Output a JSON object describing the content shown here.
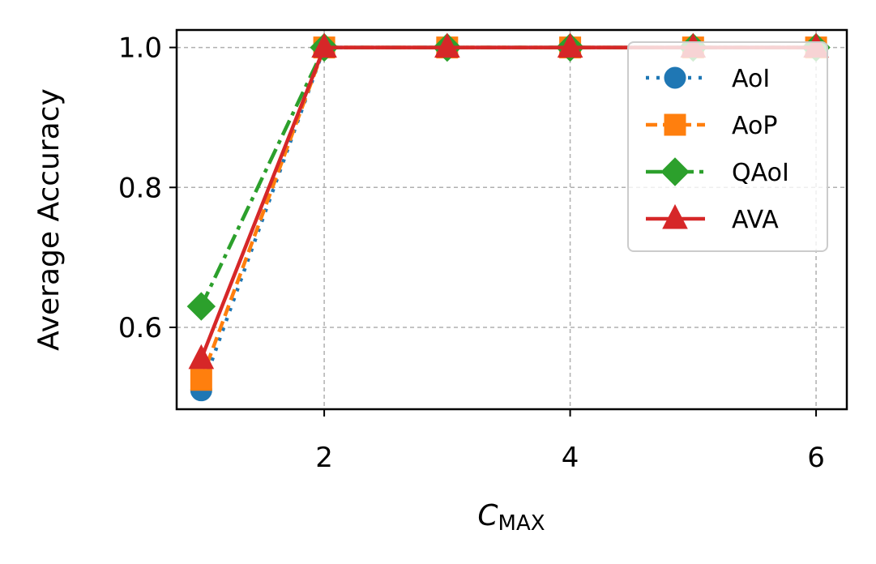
{
  "chart_data": {
    "type": "line",
    "xlabel_main": "C",
    "xlabel_sub": "MAX",
    "ylabel": "Average Accuracy",
    "xlim": [
      0.8,
      6.25
    ],
    "ylim": [
      0.483,
      1.025
    ],
    "xticks": [
      2,
      4,
      6
    ],
    "xtick_labels": [
      "2",
      "4",
      "6"
    ],
    "yticks": [
      0.6,
      0.8,
      1.0
    ],
    "ytick_labels": [
      "0.6",
      "0.8",
      "1.0"
    ],
    "grid": true,
    "legend_position": "top-right",
    "x": [
      1,
      2,
      3,
      4,
      5,
      6
    ],
    "series": [
      {
        "name": "AoI",
        "values": [
          0.51,
          1.0,
          1.0,
          1.0,
          1.0,
          1.0
        ],
        "color": "#1f77b4",
        "linestyle": "dotted",
        "marker": "circle"
      },
      {
        "name": "AoP",
        "values": [
          0.525,
          1.0,
          1.0,
          1.0,
          1.0,
          1.0
        ],
        "color": "#ff7f0e",
        "linestyle": "dashed",
        "marker": "square"
      },
      {
        "name": "QAoI",
        "values": [
          0.63,
          1.0,
          1.0,
          1.0,
          1.0,
          1.0
        ],
        "color": "#2ca02c",
        "linestyle": "dashdot",
        "marker": "diamond"
      },
      {
        "name": "AVA",
        "values": [
          0.555,
          1.0,
          1.0,
          1.0,
          1.0,
          1.0
        ],
        "color": "#d62728",
        "linestyle": "solid",
        "marker": "triangle"
      }
    ]
  }
}
